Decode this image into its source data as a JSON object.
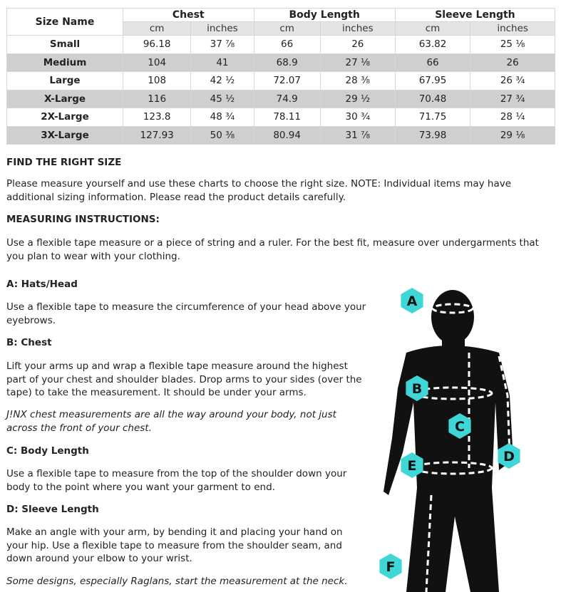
{
  "table": {
    "header": {
      "size_name": "Size Name",
      "groups": [
        "Chest",
        "Body Length",
        "Sleeve Length"
      ],
      "units": [
        "cm",
        "inches",
        "cm",
        "inches",
        "cm",
        "inches"
      ]
    },
    "rows": [
      [
        "Small",
        "96.18",
        "37 ⁷⁄₈",
        "66",
        "26",
        "63.82",
        "25 ¹⁄₈"
      ],
      [
        "Medium",
        "104",
        "41",
        "68.9",
        "27 ¹⁄₈",
        "66",
        "26"
      ],
      [
        "Large",
        "108",
        "42 ¹⁄₂",
        "72.07",
        "28 ³⁄₈",
        "67.95",
        "26 ³⁄₄"
      ],
      [
        "X-Large",
        "116",
        "45 ¹⁄₂",
        "74.9",
        "29 ¹⁄₂",
        "70.48",
        "27 ³⁄₄"
      ],
      [
        "2X-Large",
        "123.8",
        "48 ³⁄₄",
        "78.11",
        "30 ³⁄₄",
        "71.75",
        "28 ¹⁄₄"
      ],
      [
        "3X-Large",
        "127.93",
        "50 ³⁄₈",
        "80.94",
        "31 ⁷⁄₈",
        "73.98",
        "29 ¹⁄₈"
      ]
    ]
  },
  "find": {
    "heading": "FIND THE RIGHT SIZE",
    "text": "Please measure yourself and use these charts to choose the right size. NOTE: Individual items may have additional sizing information. Please read the product details carefully."
  },
  "measuring": {
    "heading": "MEASURING INSTRUCTIONS:",
    "text": "Use a flexible tape measure or a piece of string and a ruler. For the best fit, measure over undergarments that you plan to wear with your clothing."
  },
  "sections": [
    {
      "heading": "A: Hats/Head",
      "text": "Use a flexible tape to measure the circumference of your head above your eyebrows."
    },
    {
      "heading": "B: Chest",
      "text": "Lift your arms up and wrap a flexible tape measure around the highest part of your chest and shoulder blades. Drop arms to your sides (over the tape) to take the measurement. It should be under your arms.",
      "note": "J!NX chest measurements are all the way around your body, not just across the front of your chest."
    },
    {
      "heading": "C: Body Length",
      "text": "Use a flexible tape to measure from the top of the shoulder down your body to the point where you want your garment to end."
    },
    {
      "heading": "D: Sleeve Length",
      "text": "Make an angle with your arm, by bending it and placing your hand on your hip. Use a flexible tape to measure from the shoulder seam, and down around your elbow to your wrist.",
      "note": "Some designs, especially Raglans, start the measurement at the neck."
    }
  ],
  "figure": {
    "labels": [
      "A",
      "B",
      "C",
      "D",
      "E",
      "F"
    ]
  }
}
